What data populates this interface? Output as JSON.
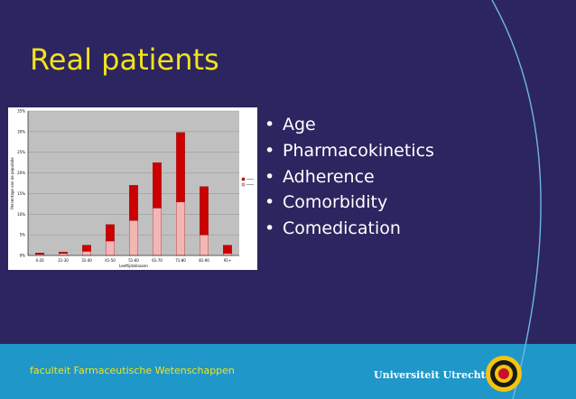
{
  "slide": {
    "title": "Real patients",
    "bullets": [
      "Age",
      "Pharmacokinetics",
      "Adherence",
      "Comorbidity",
      "Comedication"
    ],
    "footer_left": "faculteit Farmaceutische Wetenschappen",
    "footer_right": "Universiteit Utrecht",
    "colors": {
      "background": "#2d2560",
      "footer": "#1f97c8",
      "title": "#f2e31b",
      "accent_arc": "#6fb6e6"
    }
  },
  "chart_data": {
    "type": "bar",
    "stacked": true,
    "categories": [
      "0-20",
      "21-30",
      "31-40",
      "41-50",
      "51-60",
      "61-70",
      "71-80",
      "81-90",
      "91+"
    ],
    "y_ticks": [
      "0%",
      "5%",
      "10%",
      "15%",
      "20%",
      "25%",
      "30%",
      "35%"
    ],
    "ylim": [
      0,
      35
    ],
    "xlabel": "Leeftijdsklassen",
    "ylabel": "Percentage van de populatie",
    "legend_position": "right",
    "series": [
      {
        "name": "",
        "values": [
          0.3,
          0.5,
          1.0,
          3.5,
          8.5,
          11.5,
          13.0,
          5.0,
          0.5
        ],
        "color": "#f4b5b5"
      },
      {
        "name": "",
        "values": [
          0.3,
          0.3,
          1.5,
          4.0,
          8.5,
          11.0,
          16.8,
          11.7,
          2.0
        ],
        "color": "#cc0000"
      }
    ],
    "grid": true
  }
}
